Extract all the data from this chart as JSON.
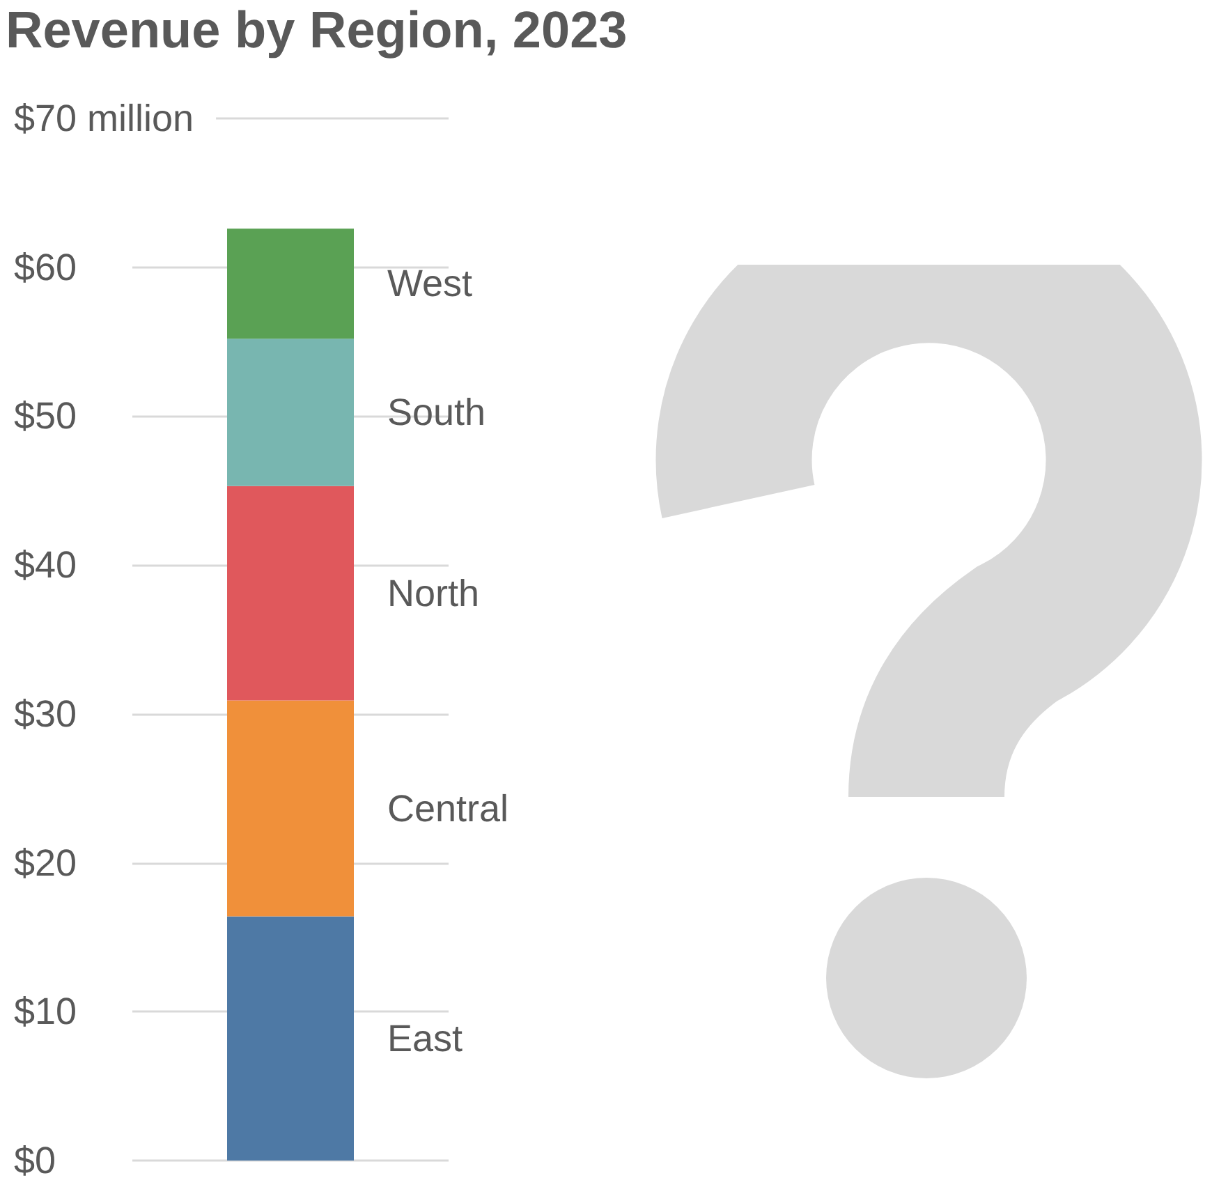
{
  "chart_data": {
    "type": "bar",
    "title": "Revenue by Region, 2023",
    "stacked": true,
    "grid": "y",
    "categories": [
      null
    ],
    "series": [
      {
        "name": "East",
        "color": "#4e79a5",
        "values": [
          16.4
        ]
      },
      {
        "name": "Central",
        "color": "#f0903a",
        "values": [
          14.5
        ]
      },
      {
        "name": "North",
        "color": "#e0585c",
        "values": [
          14.4
        ]
      },
      {
        "name": "South",
        "color": "#78b6b0",
        "values": [
          9.9
        ]
      },
      {
        "name": "West",
        "color": "#5aa154",
        "values": [
          7.4
        ]
      }
    ],
    "ylim": [
      0,
      70
    ],
    "yticks": [
      {
        "value": 0,
        "label": "$0"
      },
      {
        "value": 10,
        "label": "$10"
      },
      {
        "value": 20,
        "label": "$20"
      },
      {
        "value": 30,
        "label": "$30"
      },
      {
        "value": 40,
        "label": "$40"
      },
      {
        "value": 50,
        "label": "$50"
      },
      {
        "value": 60,
        "label": "$60"
      },
      {
        "value": 70,
        "label": "$70 million"
      }
    ]
  }
}
